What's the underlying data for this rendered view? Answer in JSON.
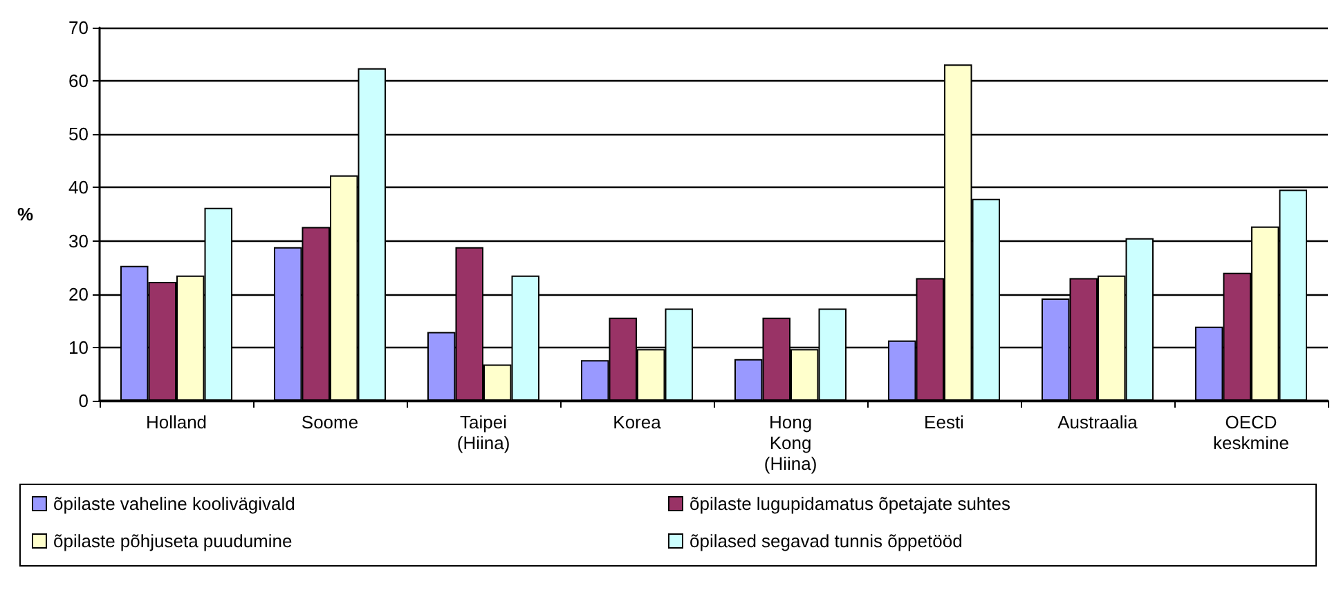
{
  "chart_data": {
    "type": "bar",
    "ylabel": "%",
    "categories": [
      "Holland",
      "Soome",
      "Taipei\n(Hiina)",
      "Korea",
      "Hong\nKong\n(Hiina)",
      "Eesti",
      "Austraalia",
      "OECD\nkeskmine"
    ],
    "series": [
      {
        "name": "õpilaste vaheline koolivägivald",
        "color": "#9999ff",
        "values": [
          25.3,
          28.8,
          12.9,
          7.6,
          7.8,
          11.3,
          19.2,
          13.9
        ]
      },
      {
        "name": "õpilaste lugupidamatus õpetajate suhtes",
        "color": "#993366",
        "values": [
          22.3,
          32.6,
          28.8,
          15.6,
          15.6,
          23.0,
          23.0,
          24.0
        ]
      },
      {
        "name": "õpilaste põhjuseta puudumine",
        "color": "#ffffcc",
        "values": [
          23.5,
          42.3,
          6.8,
          9.7,
          9.7,
          63.1,
          23.5,
          32.7
        ]
      },
      {
        "name": "õpilased segavad tunnis õppetööd",
        "color": "#ccffff",
        "values": [
          36.2,
          62.4,
          23.5,
          17.3,
          17.3,
          37.9,
          30.5,
          39.6
        ]
      }
    ],
    "ylim": [
      0,
      70
    ],
    "yticks": [
      0,
      10,
      20,
      30,
      40,
      50,
      60,
      70
    ],
    "grid": "y",
    "legend": "bottom"
  }
}
